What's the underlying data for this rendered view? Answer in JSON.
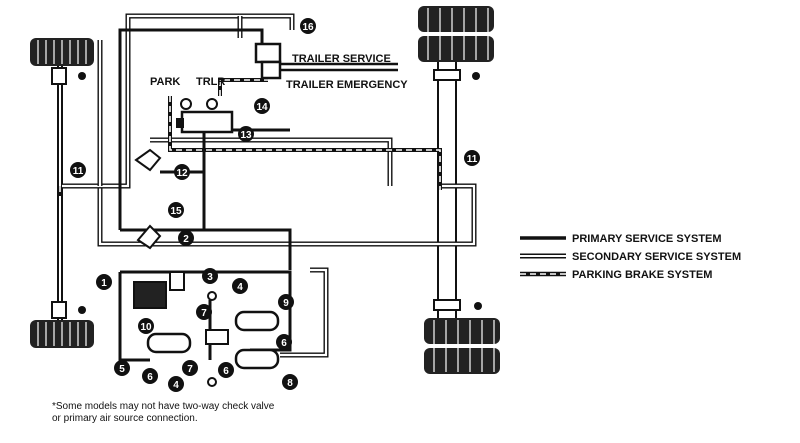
{
  "labels": {
    "trailer_service": "TRAILER SERVICE",
    "trailer_emergency": "TRAILER EMERGENCY",
    "park": "PARK",
    "trlr": "TRLR"
  },
  "callouts": [
    "1",
    "2",
    "3",
    "4",
    "4",
    "5",
    "6",
    "6",
    "6",
    "7",
    "7",
    "8",
    "9",
    "10",
    "11",
    "11",
    "12",
    "13",
    "14",
    "15",
    "16"
  ],
  "legend": [
    {
      "label": "PRIMARY SERVICE SYSTEM",
      "style": "primary"
    },
    {
      "label": "SECONDARY SERVICE SYSTEM",
      "style": "secondary"
    },
    {
      "label": "PARKING BRAKE SYSTEM",
      "style": "parking"
    }
  ],
  "footnote": {
    "line1": "*Some models may not have two-way check valve",
    "line2": "or primary air source connection."
  },
  "colors": {
    "ink": "#111111",
    "paper": "#ffffff"
  }
}
